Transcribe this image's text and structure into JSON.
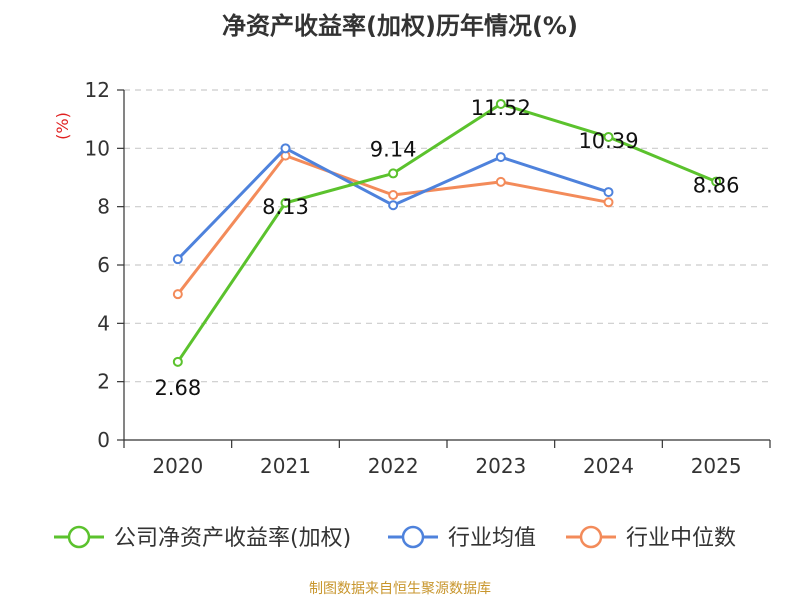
{
  "title": "净资产收益率(加权)历年情况(%)",
  "source": "制图数据来自恒生聚源数据库",
  "chart_data": {
    "type": "line",
    "title": "净资产收益率(加权)历年情况(%)",
    "ylabel": "(%)",
    "xlabel": "",
    "categories": [
      "2020",
      "2021",
      "2022",
      "2023",
      "2024",
      "2025"
    ],
    "ylim": [
      0,
      12
    ],
    "yticks": [
      0,
      2,
      4,
      6,
      8,
      10,
      12
    ],
    "grid": true,
    "legend_position": "bottom",
    "series": [
      {
        "name": "公司净资产收益率(加权)",
        "color": "#5bc22d",
        "values": [
          2.68,
          8.13,
          9.14,
          11.52,
          10.39,
          8.86
        ],
        "labels": [
          "2.68",
          "8.13",
          "9.14",
          "11.52",
          "10.39",
          "8.86"
        ]
      },
      {
        "name": "行业均值",
        "color": "#4e82dc",
        "values": [
          6.2,
          10.0,
          8.05,
          9.7,
          8.5,
          null
        ]
      },
      {
        "name": "行业中位数",
        "color": "#f38b5a",
        "values": [
          5.0,
          9.75,
          8.4,
          8.85,
          8.15,
          null
        ]
      }
    ]
  }
}
